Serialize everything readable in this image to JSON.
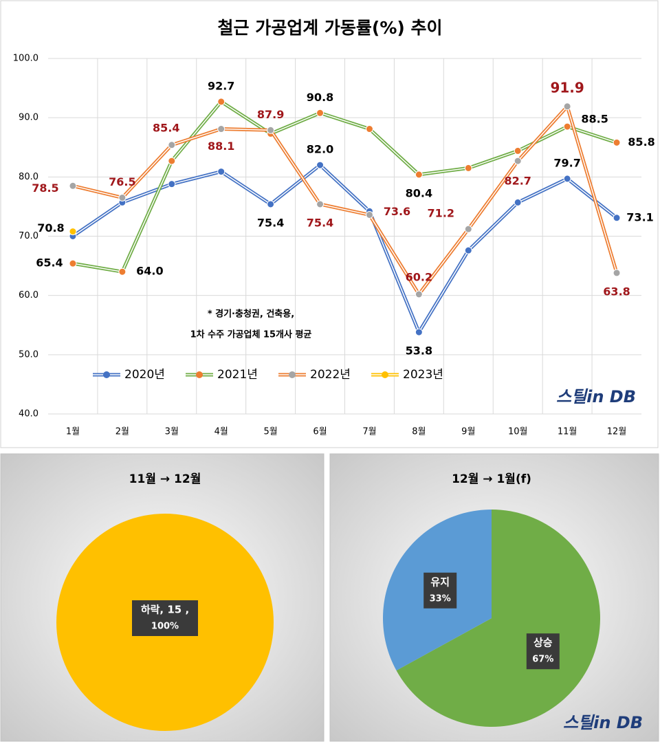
{
  "chart_data": [
    {
      "type": "line",
      "title": "철근 가공업계 가동률(%) 추이",
      "categories": [
        "1월",
        "2월",
        "3월",
        "4월",
        "5월",
        "6월",
        "7월",
        "8월",
        "9월",
        "10월",
        "11월",
        "12월"
      ],
      "ylim": [
        40,
        100
      ],
      "yticks": [
        {
          "value": 40,
          "label": "40.0"
        },
        {
          "value": 50,
          "label": "50.0"
        },
        {
          "value": 60,
          "label": "60.0"
        },
        {
          "value": 70,
          "label": "70.0"
        },
        {
          "value": 80,
          "label": "80.0"
        },
        {
          "value": 90,
          "label": "90.0"
        },
        {
          "value": 100,
          "label": "100.0"
        }
      ],
      "grid": true,
      "annotations": [
        "* 경기·충청권, 건축용,",
        "1차 수주 가공업체 15개사 평균"
      ],
      "logo": "스틸in DB",
      "series": [
        {
          "name": "2020년",
          "color": "#4472c4",
          "marker_color": "#4472c4",
          "label_color": "#000000",
          "values": [
            70.0,
            75.7,
            78.8,
            80.9,
            75.4,
            82.0,
            74.2,
            53.8,
            67.6,
            75.7,
            79.7,
            73.1
          ],
          "value_labels": [
            null,
            null,
            null,
            null,
            "75.4",
            "82.0",
            null,
            "53.8",
            null,
            null,
            "79.7",
            "73.1"
          ]
        },
        {
          "name": "2021년",
          "color": "#70ad47",
          "marker_color": "#ed7d31",
          "label_color": "#000000",
          "values": [
            65.4,
            64.0,
            82.7,
            92.7,
            87.3,
            90.8,
            88.1,
            80.4,
            81.5,
            84.4,
            88.5,
            85.8
          ],
          "value_labels": [
            "65.4",
            "64.0",
            null,
            "92.7",
            null,
            "90.8",
            null,
            "80.4",
            null,
            null,
            "88.5",
            "85.8"
          ]
        },
        {
          "name": "2022년",
          "color": "#ed7d31",
          "marker_color": "#a5a5a5",
          "label_color": "#a0171b",
          "values": [
            78.5,
            76.5,
            85.4,
            88.1,
            87.9,
            75.4,
            73.6,
            60.2,
            71.2,
            82.7,
            91.9,
            63.8
          ],
          "value_labels": [
            "78.5",
            "76.5",
            "85.4",
            "88.1",
            "87.9",
            "75.4",
            "73.6",
            "60.2",
            "71.2",
            "82.7",
            "91.9",
            "63.8"
          ]
        },
        {
          "name": "2023년",
          "color": "#ffc000",
          "marker_color": "#ffc000",
          "label_color": "#000000",
          "values": [
            70.8,
            null,
            null,
            null,
            null,
            null,
            null,
            null,
            null,
            null,
            null,
            null
          ],
          "value_labels": [
            "70.8",
            null,
            null,
            null,
            null,
            null,
            null,
            null,
            null,
            null,
            null,
            null
          ]
        }
      ]
    },
    {
      "type": "pie",
      "title": "11월 → 12월",
      "categories": [
        "하락"
      ],
      "values": [
        15
      ],
      "colors": [
        "#ffc000"
      ],
      "value_labels": [
        "하락, 15 ,"
      ],
      "percent_labels": [
        "100%"
      ]
    },
    {
      "type": "pie",
      "title": "12월 → 1월(f)",
      "categories": [
        "상승",
        "유지"
      ],
      "values": [
        67,
        33
      ],
      "colors": [
        "#70ad47",
        "#5b9bd5"
      ],
      "value_labels": [
        "67%",
        "33%"
      ],
      "logo": "스틸in DB"
    }
  ]
}
